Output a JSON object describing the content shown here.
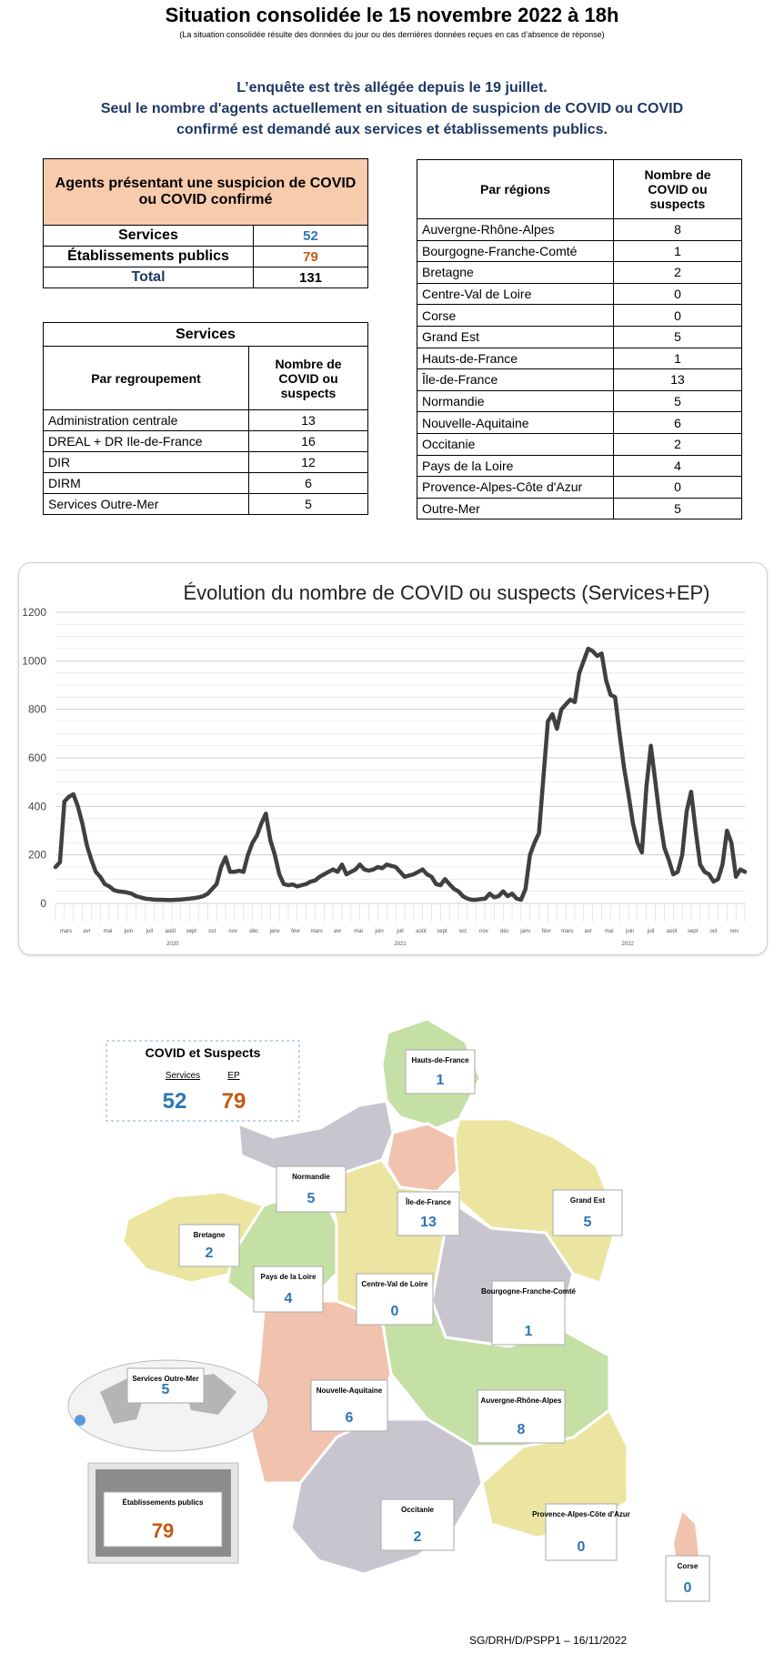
{
  "header": {
    "title": "Situation consolidée le 15 novembre 2022 à 18h",
    "subtitle": "(La situation consolidée résulte des données du jour ou des dernières données reçues en cas d’absence de réponse)"
  },
  "intro": {
    "line1": "L’enquête est très allégée depuis le 19 juillet.",
    "line2": "Seul le nombre d'agents actuellement en situation de suspicion de COVID ou COVID",
    "line3": "confirmé est demandé aux services et établissements publics."
  },
  "summary": {
    "header_line1": "Agents présentant une suspicion de COVID",
    "header_line2": "ou COVID confirmé",
    "rows": [
      {
        "label": "Services",
        "value": "52"
      },
      {
        "label": "Établissements publics",
        "value": "79"
      },
      {
        "label": "Total",
        "value": "131"
      }
    ]
  },
  "services_table": {
    "title": "Services",
    "col1": "Par regroupement",
    "col2_line1": "Nombre de",
    "col2_line2": "COVID ou",
    "col2_line3": "suspects",
    "rows": [
      {
        "label": "Administration centrale",
        "value": "13"
      },
      {
        "label": "DREAL + DR Ile-de-France",
        "value": "16"
      },
      {
        "label": "DIR",
        "value": "12"
      },
      {
        "label": "DIRM",
        "value": "6"
      },
      {
        "label": "Services Outre-Mer",
        "value": "5"
      }
    ]
  },
  "regions_table": {
    "col1": "Par régions",
    "col2_line1": "Nombre de",
    "col2_line2": "COVID ou",
    "col2_line3": "suspects",
    "rows": [
      {
        "label": "Auvergne-Rhône-Alpes",
        "value": "8"
      },
      {
        "label": "Bourgogne-Franche-Comté",
        "value": "1"
      },
      {
        "label": "Bretagne",
        "value": "2"
      },
      {
        "label": "Centre-Val de Loire",
        "value": "0"
      },
      {
        "label": "Corse",
        "value": "0"
      },
      {
        "label": "Grand Est",
        "value": "5"
      },
      {
        "label": "Hauts-de-France",
        "value": "1"
      },
      {
        "label": "Île-de-France",
        "value": "13"
      },
      {
        "label": "Normandie",
        "value": "5"
      },
      {
        "label": "Nouvelle-Aquitaine",
        "value": "6"
      },
      {
        "label": "Occitanie",
        "value": "2"
      },
      {
        "label": "Pays de la Loire",
        "value": "4"
      },
      {
        "label": "Provence-Alpes-Côte d'Azur",
        "value": "0"
      },
      {
        "label": "Outre-Mer",
        "value": "5"
      }
    ]
  },
  "chart_data": {
    "type": "line",
    "title": "Évolution du nombre de COVID ou suspects (Services+EP)",
    "xlabel": "",
    "ylabel": "",
    "ylim": [
      0,
      1200
    ],
    "yticks": [
      "0",
      "200",
      "400",
      "600",
      "800",
      "1000",
      "1200"
    ],
    "grid": true,
    "month_labels": [
      "mars",
      "avr",
      "mai",
      "juin",
      "juil",
      "août",
      "sept",
      "oct",
      "nov",
      "déc",
      "janv",
      "févr",
      "mars",
      "avr",
      "mai",
      "juin",
      "juil",
      "août",
      "sept",
      "oct",
      "nov",
      "déc",
      "janv",
      "févr",
      "mars",
      "avr",
      "mai",
      "juin",
      "juil",
      "août",
      "sept",
      "oct",
      "nov"
    ],
    "year_labels": [
      "2020",
      "2021",
      "2022"
    ],
    "series": [
      {
        "color": "#404040",
        "values": [
          150,
          170,
          420,
          440,
          450,
          400,
          330,
          240,
          180,
          130,
          110,
          80,
          70,
          55,
          50,
          48,
          45,
          40,
          30,
          25,
          20,
          18,
          16,
          15,
          15,
          14,
          14,
          15,
          16,
          18,
          20,
          22,
          25,
          30,
          40,
          60,
          80,
          150,
          190,
          130,
          130,
          135,
          130,
          200,
          250,
          280,
          330,
          370,
          260,
          200,
          120,
          80,
          75,
          78,
          70,
          75,
          80,
          90,
          95,
          110,
          120,
          130,
          140,
          130,
          160,
          120,
          130,
          140,
          160,
          140,
          135,
          140,
          150,
          145,
          160,
          155,
          150,
          130,
          110,
          115,
          120,
          130,
          140,
          120,
          110,
          80,
          75,
          100,
          80,
          60,
          50,
          30,
          20,
          15,
          15,
          18,
          20,
          40,
          25,
          30,
          50,
          30,
          40,
          20,
          15,
          60,
          200,
          250,
          290,
          520,
          750,
          780,
          720,
          800,
          820,
          840,
          830,
          950,
          1000,
          1050,
          1040,
          1020,
          1030,
          920,
          860,
          850,
          700,
          560,
          450,
          330,
          250,
          210,
          480,
          650,
          500,
          350,
          230,
          180,
          120,
          130,
          200,
          380,
          460,
          300,
          160,
          130,
          120,
          90,
          100,
          160,
          300,
          250,
          110,
          140,
          130
        ]
      }
    ]
  },
  "map": {
    "legend": {
      "title": "COVID et Suspects",
      "services_label": "Services",
      "ep_label": "EP",
      "services_value": "52",
      "ep_value": "79"
    },
    "regions": [
      {
        "name": "Hauts-de-France",
        "value": "1"
      },
      {
        "name": "Normandie",
        "value": "5"
      },
      {
        "name": "Île-de-France",
        "value": "13"
      },
      {
        "name": "Grand Est",
        "value": "5"
      },
      {
        "name": "Bretagne",
        "value": "2"
      },
      {
        "name": "Pays de la Loire",
        "value": "4"
      },
      {
        "name": "Centre-Val de Loire",
        "value": "0"
      },
      {
        "name": "Bourgogne-Franche-Comté",
        "value": "1"
      },
      {
        "name": "Nouvelle-Aquitaine",
        "value": "6"
      },
      {
        "name": "Auvergne-Rhône-Alpes",
        "value": "8"
      },
      {
        "name": "Occitanie",
        "value": "2"
      },
      {
        "name": "Provence-Alpes-Côte d'Azur",
        "value": "0"
      },
      {
        "name": "Corse",
        "value": "0"
      }
    ],
    "outre_mer": {
      "name": "Services Outre-Mer",
      "value": "5"
    },
    "etablissements": {
      "name": "Établissements publics",
      "value": "79"
    },
    "colors": {
      "green": "#c5e0a5",
      "gray": "#c9c5cf",
      "salmon": "#f1c2ae",
      "yellow": "#ece5a1",
      "blue_value": "#2e75b6",
      "orange_value": "#c55a11"
    }
  },
  "footer": {
    "text": "SG/DRH/D/PSPP1 – 16/11/2022"
  }
}
